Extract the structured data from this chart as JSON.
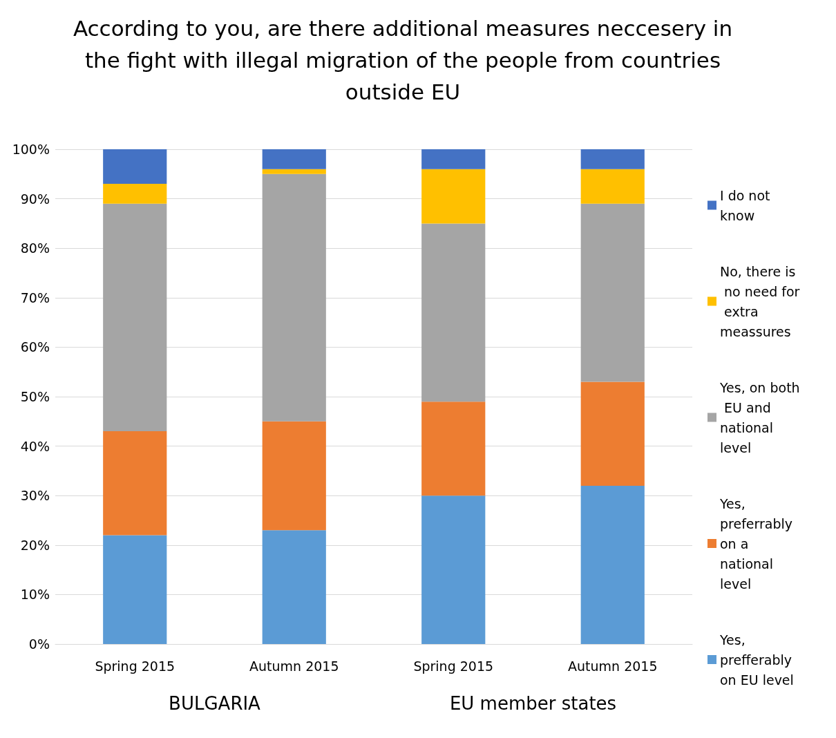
{
  "chart_data": {
    "type": "bar",
    "title": "According to you, are there additional measures neccesery in the fight with illegal migration of the people from countries outside EU",
    "categories": [
      "Spring 2015",
      "Autumn 2015",
      "Spring 2015",
      "Autumn 2015"
    ],
    "stacked": true,
    "series": [
      {
        "name": "Yes, prefferably on EU level",
        "color": "#5b9bd5",
        "values": [
          22,
          23,
          30,
          32
        ]
      },
      {
        "name": "Yes, preferrably on a national level",
        "color": "#ed7d31",
        "values": [
          21,
          22,
          19,
          21
        ]
      },
      {
        "name": "Yes, on both EU and national level",
        "color": "#a5a5a5",
        "values": [
          46,
          50,
          36,
          36
        ]
      },
      {
        "name": "No, there is no need for extra meassures",
        "color": "#ffc000",
        "values": [
          4,
          1,
          11,
          7
        ]
      },
      {
        "name": "I do not know",
        "color": "#4472c4",
        "values": [
          7,
          4,
          4,
          4
        ]
      }
    ],
    "ylim": [
      0,
      100
    ],
    "yticks": [
      {
        "value": 0,
        "label": "0%"
      },
      {
        "value": 10,
        "label": "10%"
      },
      {
        "value": 20,
        "label": "20%"
      },
      {
        "value": 30,
        "label": "30%"
      },
      {
        "value": 40,
        "label": "40%"
      },
      {
        "value": 50,
        "label": "50%"
      },
      {
        "value": 60,
        "label": "60%"
      },
      {
        "value": 70,
        "label": "70%"
      },
      {
        "value": 80,
        "label": "80%"
      },
      {
        "value": 90,
        "label": "90%"
      },
      {
        "value": 100,
        "label": "100%"
      }
    ],
    "grid": "y",
    "legend": "right",
    "annotations": [
      "BULGARIA",
      "EU member states"
    ]
  }
}
